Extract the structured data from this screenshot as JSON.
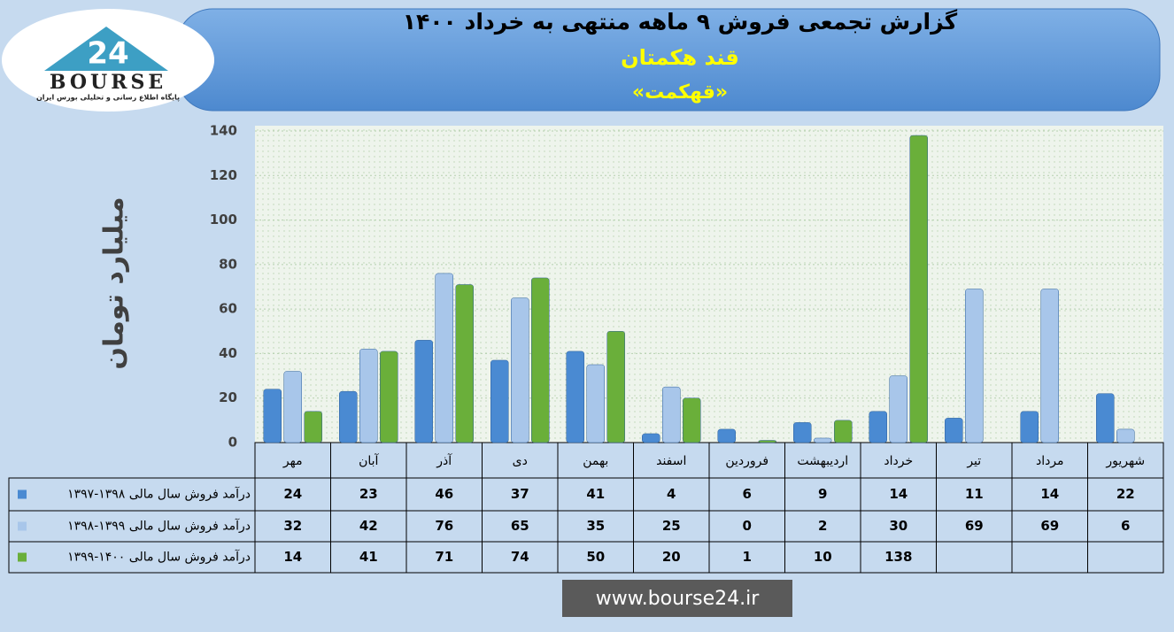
{
  "logo": {
    "text": "BOURSE",
    "number": "24",
    "tagline": "پایگاه اطلاع رسانی و تحلیلی بورس ایران"
  },
  "footer": "www.bourse24.ir",
  "chart_data": {
    "type": "bar",
    "title": "گزارش تجمعی فروش ۹ ماهه منتهی به خرداد ۱۴۰۰",
    "subtitle": "قند هکمتان",
    "symbol": "«قهکمت»",
    "y_label": "میلیارد تومان",
    "categories": [
      "مهر",
      "آبان",
      "آذر",
      "دی",
      "بهمن",
      "اسفند",
      "فروردین",
      "اردیبهشت",
      "خرداد",
      "تیر",
      "مرداد",
      "شهریور"
    ],
    "series": [
      {
        "name": "درآمد فروش سال مالی ۱۳۹۸-۱۳۹۷",
        "color": "#4a8ad2",
        "values": [
          24,
          23,
          46,
          37,
          41,
          4,
          6,
          9,
          14,
          11,
          14,
          22
        ]
      },
      {
        "name": "درآمد فروش سال مالی ۱۳۹۹-۱۳۹۸",
        "color": "#a8c6ea",
        "values": [
          32,
          42,
          76,
          65,
          35,
          25,
          0,
          2,
          30,
          69,
          69,
          6
        ]
      },
      {
        "name": "درآمد فروش سال مالی ۱۴۰۰-۱۳۹۹",
        "color": "#6aaf3a",
        "values": [
          14,
          41,
          71,
          74,
          50,
          20,
          1,
          10,
          138,
          null,
          null,
          null
        ]
      }
    ],
    "ylim": [
      0,
      140
    ],
    "yticks": [
      0,
      20,
      40,
      60,
      80,
      100,
      120,
      140
    ],
    "grid": true
  }
}
